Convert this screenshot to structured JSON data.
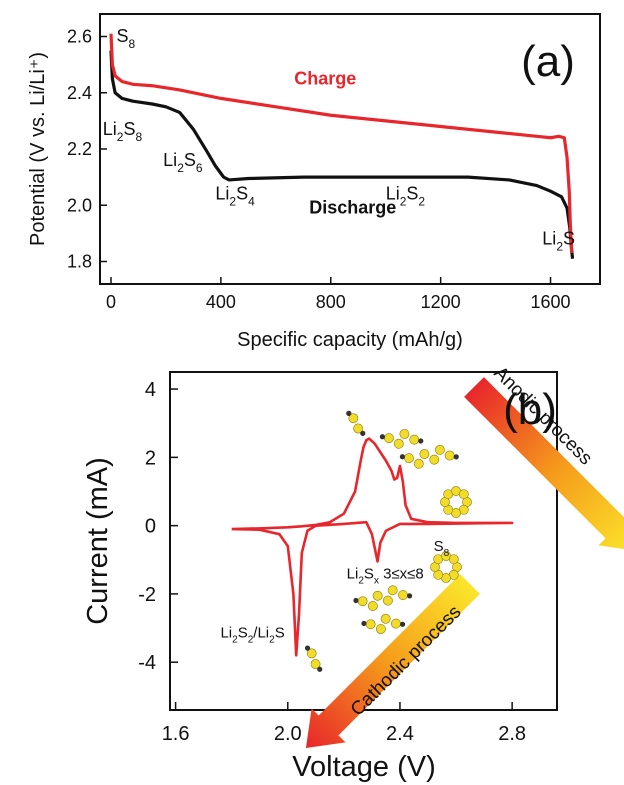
{
  "colors": {
    "charge": "#e8262b",
    "discharge": "#111111",
    "cv": "#e8262b",
    "axis": "#111111",
    "sulfur_atom": "#f2dc2a",
    "end_atom": "#333333",
    "arrow_red": "#e8262b",
    "arrow_orange": "#f59a1b",
    "arrow_yellow": "#fbe62a"
  },
  "chart_data": [
    {
      "id": "a",
      "type": "line",
      "panel_label": "(a)",
      "xlabel": "Specific capacity (mAh/g)",
      "ylabel": "Potential (V vs. Li/Li⁺)",
      "xlim": [
        -40,
        1780
      ],
      "ylim": [
        1.72,
        2.68
      ],
      "xticks": [
        0,
        400,
        800,
        1200,
        1600
      ],
      "yticks": [
        1.8,
        2.0,
        2.2,
        2.4,
        2.6
      ],
      "ytick_labels": [
        "1.8",
        "2.0",
        "2.2",
        "2.4",
        "2.6"
      ],
      "grid": false,
      "series": [
        {
          "name": "Charge",
          "color_key": "charge",
          "x": [
            0,
            5,
            15,
            40,
            80,
            150,
            250,
            400,
            600,
            800,
            1000,
            1200,
            1400,
            1550,
            1600,
            1630,
            1650,
            1660,
            1668,
            1672,
            1677
          ],
          "y": [
            2.61,
            2.5,
            2.46,
            2.44,
            2.43,
            2.425,
            2.41,
            2.38,
            2.35,
            2.32,
            2.3,
            2.28,
            2.26,
            2.245,
            2.24,
            2.245,
            2.24,
            2.17,
            2.05,
            1.93,
            1.83
          ]
        },
        {
          "name": "Discharge",
          "color_key": "discharge",
          "x": [
            0,
            5,
            15,
            40,
            80,
            150,
            200,
            250,
            300,
            350,
            380,
            410,
            430,
            500,
            700,
            1000,
            1300,
            1450,
            1550,
            1600,
            1640,
            1660,
            1670,
            1675,
            1680
          ],
          "y": [
            2.55,
            2.45,
            2.4,
            2.38,
            2.37,
            2.36,
            2.35,
            2.33,
            2.27,
            2.19,
            2.14,
            2.1,
            2.09,
            2.095,
            2.1,
            2.1,
            2.1,
            2.09,
            2.07,
            2.05,
            2.03,
            1.99,
            1.92,
            1.86,
            1.81
          ]
        }
      ],
      "annotations": [
        {
          "id": "charge",
          "text": "Charge",
          "x": 780,
          "y": 2.43
        },
        {
          "id": "discharge",
          "text": "Discharge",
          "x": 880,
          "y": 1.97
        },
        {
          "id": "s8",
          "base": "S",
          "sub": "8",
          "x": 20,
          "y": 2.58
        },
        {
          "id": "li2s8",
          "base": "Li",
          "sub1": "2",
          "mid": "S",
          "sub2": "8",
          "x": -30,
          "y": 2.25
        },
        {
          "id": "li2s6",
          "base": "Li",
          "sub1": "2",
          "mid": "S",
          "sub2": "6",
          "x": 190,
          "y": 2.14
        },
        {
          "id": "li2s4",
          "base": "Li",
          "sub1": "2",
          "mid": "S",
          "sub2": "4",
          "x": 380,
          "y": 2.02
        },
        {
          "id": "li2s2",
          "base": "Li",
          "sub1": "2",
          "mid": "S",
          "sub2": "2",
          "x": 1000,
          "y": 2.02
        },
        {
          "id": "li2s",
          "base": "Li",
          "sub1": "2",
          "mid": "S",
          "x": 1570,
          "y": 1.86
        }
      ]
    },
    {
      "id": "b",
      "type": "line",
      "panel_label": "(b)",
      "xlabel": "Voltage (V)",
      "ylabel": "Current (mA)",
      "xlim": [
        1.58,
        2.96
      ],
      "ylim": [
        -5.4,
        4.5
      ],
      "xticks": [
        1.6,
        2.0,
        2.4,
        2.8
      ],
      "xtick_labels": [
        "1.6",
        "2.0",
        "2.4",
        "2.8"
      ],
      "yticks": [
        -4,
        -2,
        0,
        2,
        4
      ],
      "ytick_labels": [
        "-4",
        "-2",
        "0",
        "2",
        "4"
      ],
      "grid": false,
      "series": [
        {
          "color_key": "cv",
          "x": [
            1.8,
            1.9,
            1.97,
            2.0,
            2.02,
            2.03,
            2.04,
            2.05,
            2.07,
            2.1,
            2.2,
            2.28,
            2.3,
            2.32,
            2.33,
            2.35,
            2.4,
            2.5,
            2.6,
            2.7,
            2.8,
            2.7,
            2.6,
            2.5,
            2.44,
            2.42,
            2.41,
            2.4,
            2.39,
            2.38,
            2.37,
            2.35,
            2.33,
            2.31,
            2.29,
            2.28,
            2.27,
            2.26,
            2.24,
            2.2,
            2.15,
            2.1,
            2.05,
            2.0,
            1.9,
            1.8
          ],
          "y": [
            -0.1,
            -0.12,
            -0.25,
            -0.6,
            -2.0,
            -3.8,
            -2.6,
            -0.8,
            -0.15,
            0.0,
            0.05,
            0.1,
            -0.25,
            -1.05,
            -0.5,
            -0.15,
            0.05,
            0.05,
            0.06,
            0.07,
            0.08,
            0.08,
            0.08,
            0.1,
            0.2,
            0.6,
            1.3,
            1.75,
            1.4,
            1.35,
            1.6,
            1.9,
            2.15,
            2.4,
            2.55,
            2.5,
            2.3,
            1.9,
            1.0,
            0.35,
            0.1,
            0.02,
            -0.02,
            -0.05,
            -0.08,
            -0.1
          ]
        }
      ],
      "annotations": [
        {
          "id": "anodic",
          "text": "Anodic process"
        },
        {
          "id": "cathodic",
          "text": "Cathodic process"
        },
        {
          "id": "s8b",
          "base": "S",
          "sub": "8",
          "x": 2.52,
          "y": -0.75
        },
        {
          "id": "li2sx",
          "base": "Li",
          "sub1": "2",
          "mid": "S",
          "sub2": "x",
          "tail": "  3≤x≤8",
          "x": 2.21,
          "y": -1.55
        },
        {
          "id": "li2s2li2s",
          "base": "Li",
          "sub1": "2",
          "mid": "S",
          "sub2": "2",
          "rest": "/Li",
          "sub3": "2",
          "end": "S",
          "x": 1.76,
          "y": -3.28
        }
      ],
      "molecule_icons": [
        "s2-chain-icon",
        "s4-chain-icon",
        "s6-chain-icon",
        "s8-ring-icon",
        "s8-ring-icon",
        "s6-chain-icon",
        "s4-chain-icon",
        "s2-chain-icon"
      ]
    }
  ]
}
